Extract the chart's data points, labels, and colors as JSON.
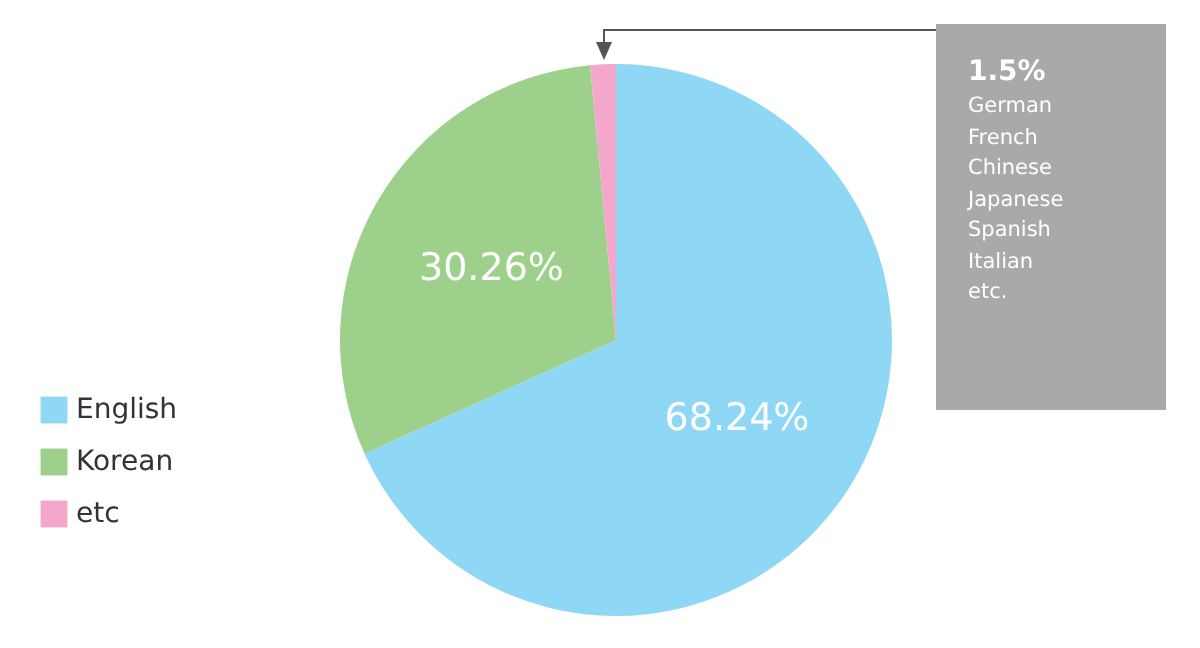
{
  "chart_data": {
    "type": "pie",
    "categories": [
      "English",
      "Korean",
      "etc"
    ],
    "values": [
      68.24,
      30.26,
      1.5
    ],
    "colors": [
      "#8fd8f5",
      "#9dd08a",
      "#f2a7cb"
    ],
    "value_labels": [
      "68.24%",
      "30.26%",
      null
    ],
    "annotations": [
      "1.5%",
      "German",
      "French",
      "Chinese",
      "Japanese",
      "Spanish",
      "Italian",
      "etc."
    ],
    "legend": "bottom left"
  }
}
